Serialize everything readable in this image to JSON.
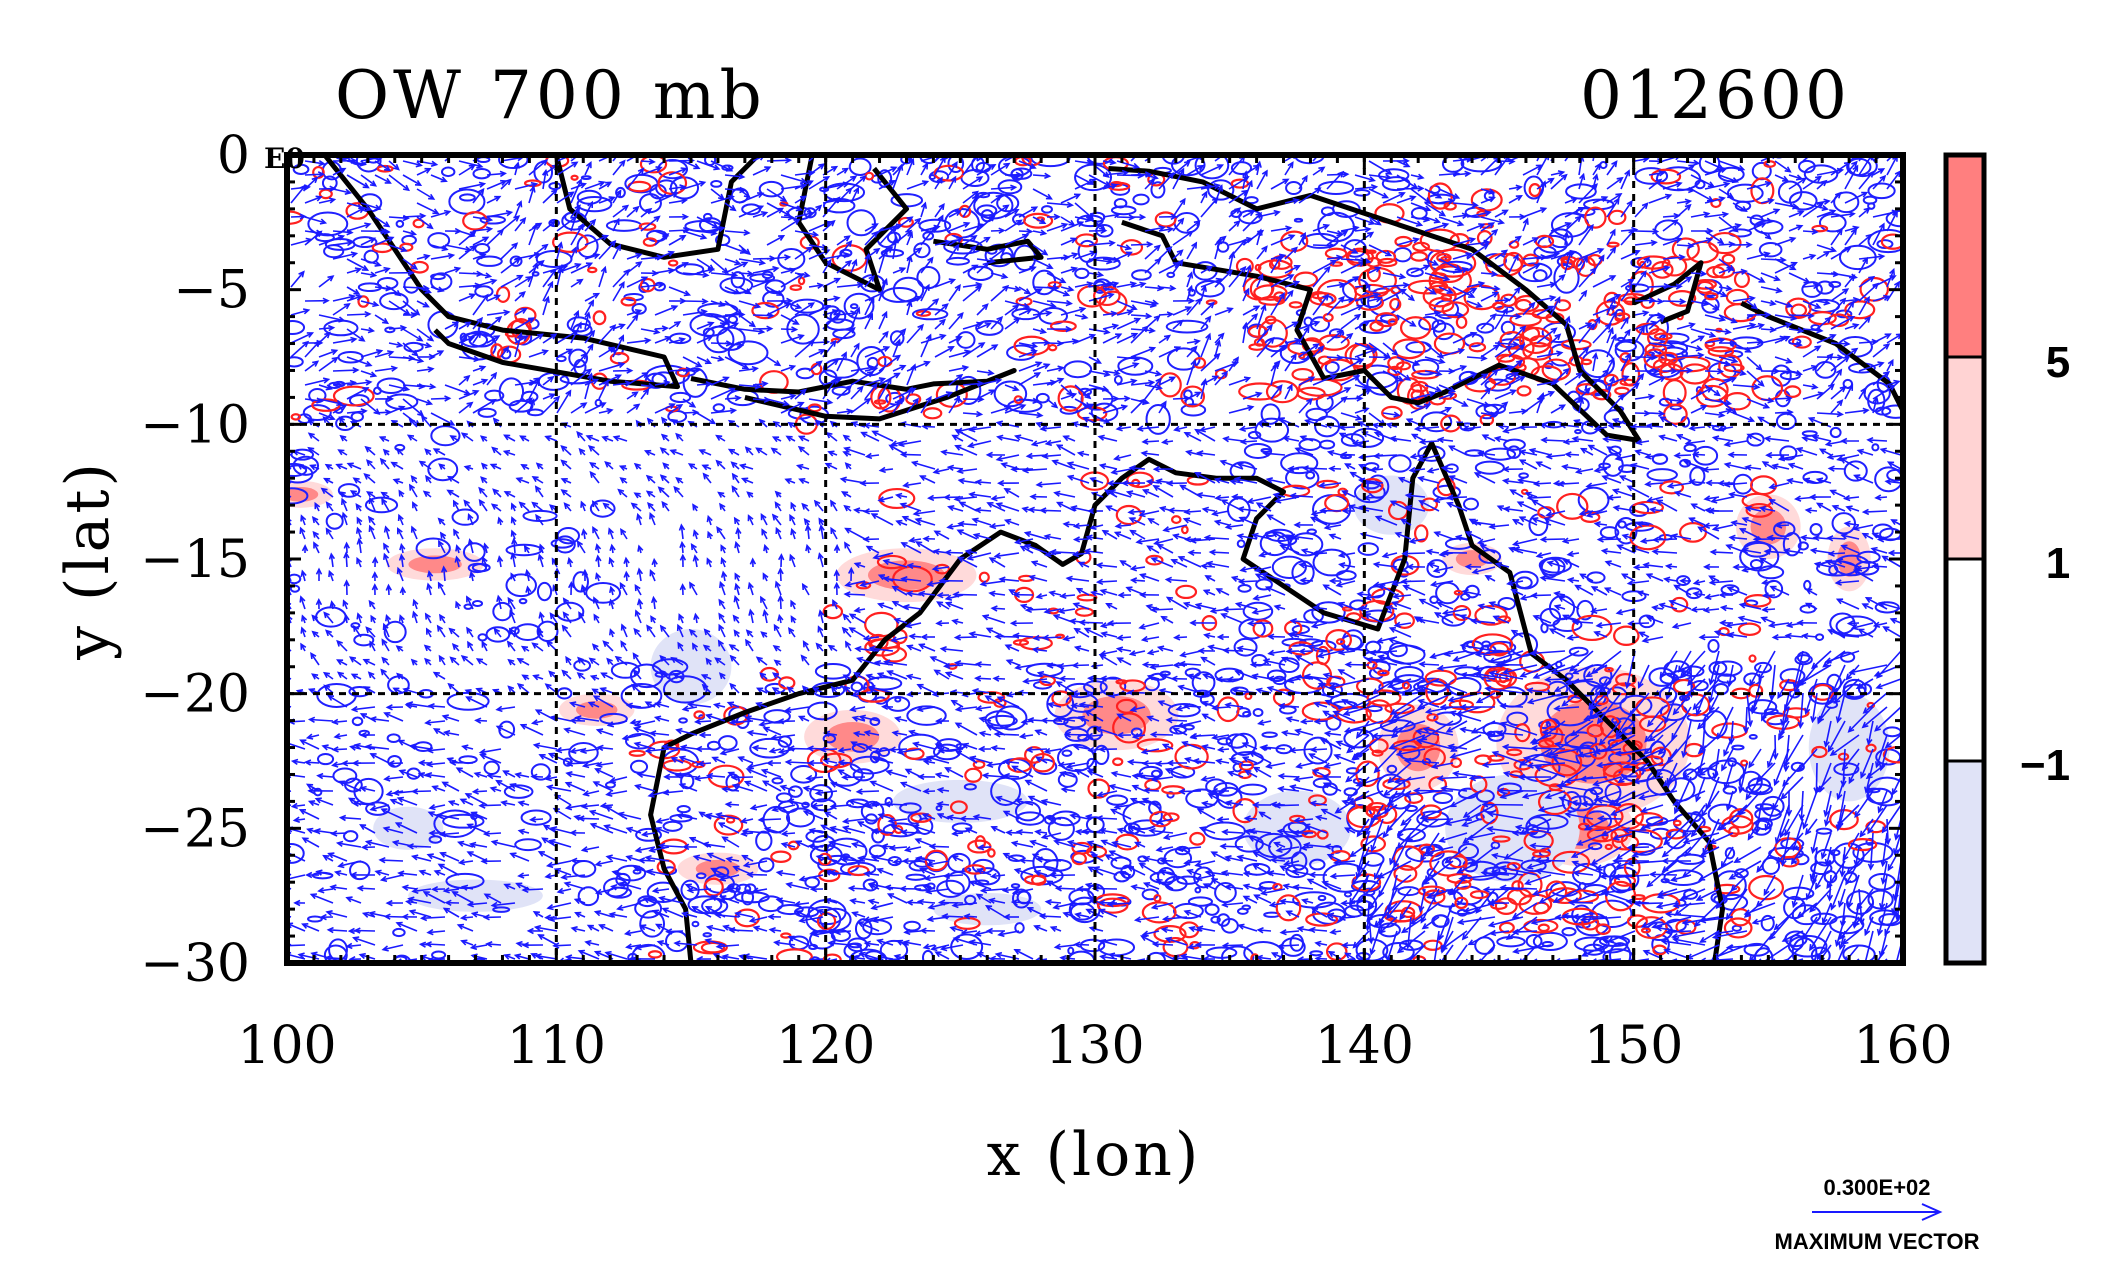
{
  "title_left": "OW 700 mb",
  "title_right": "012600",
  "corner_label": "E0",
  "x_axis": {
    "label": "x (lon)",
    "ticks": [
      "100",
      "110",
      "120",
      "130",
      "140",
      "150",
      "160"
    ],
    "range": [
      100,
      160
    ]
  },
  "y_axis": {
    "label": "y (lat)",
    "ticks": [
      "0",
      "−5",
      "−10",
      "−15",
      "−20",
      "−25",
      "−30"
    ],
    "range": [
      -30,
      0
    ]
  },
  "grid_lon": [
    110,
    120,
    130,
    140,
    150
  ],
  "grid_lat": [
    -10,
    -20
  ],
  "colorbar": {
    "labels": [
      "5",
      "1",
      "−1"
    ],
    "colors": {
      "strong_positive": "#ff7f7f",
      "positive": "#ffd3d3",
      "neutral": "#ffffff",
      "negative": "#e0e3f7"
    }
  },
  "vector_legend": {
    "magnitude": "0.300E+02",
    "caption": "MAXIMUM VECTOR",
    "color": "#0000ff"
  },
  "colors": {
    "vector": "#1a1aff",
    "contour_pos": "#ff2020",
    "coast": "#000000"
  }
}
